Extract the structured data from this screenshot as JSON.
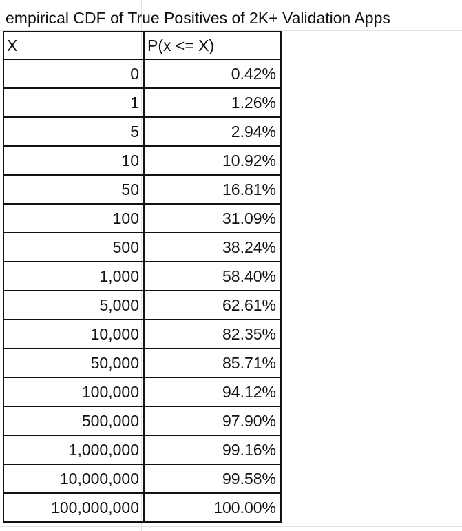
{
  "chart_data": {
    "type": "table",
    "title": "empirical CDF of True Positives of 2K+ Validation Apps",
    "columns": [
      "X",
      "P(x <= X)"
    ],
    "x": [
      "0",
      "1",
      "5",
      "10",
      "50",
      "100",
      "500",
      "1,000",
      "5,000",
      "10,000",
      "50,000",
      "100,000",
      "500,000",
      "1,000,000",
      "10,000,000",
      "100,000,000"
    ],
    "values": [
      "0.42%",
      "1.26%",
      "2.94%",
      "10.92%",
      "16.81%",
      "31.09%",
      "38.24%",
      "58.40%",
      "62.61%",
      "82.35%",
      "85.71%",
      "94.12%",
      "97.90%",
      "99.16%",
      "99.58%",
      "100.00%"
    ]
  }
}
